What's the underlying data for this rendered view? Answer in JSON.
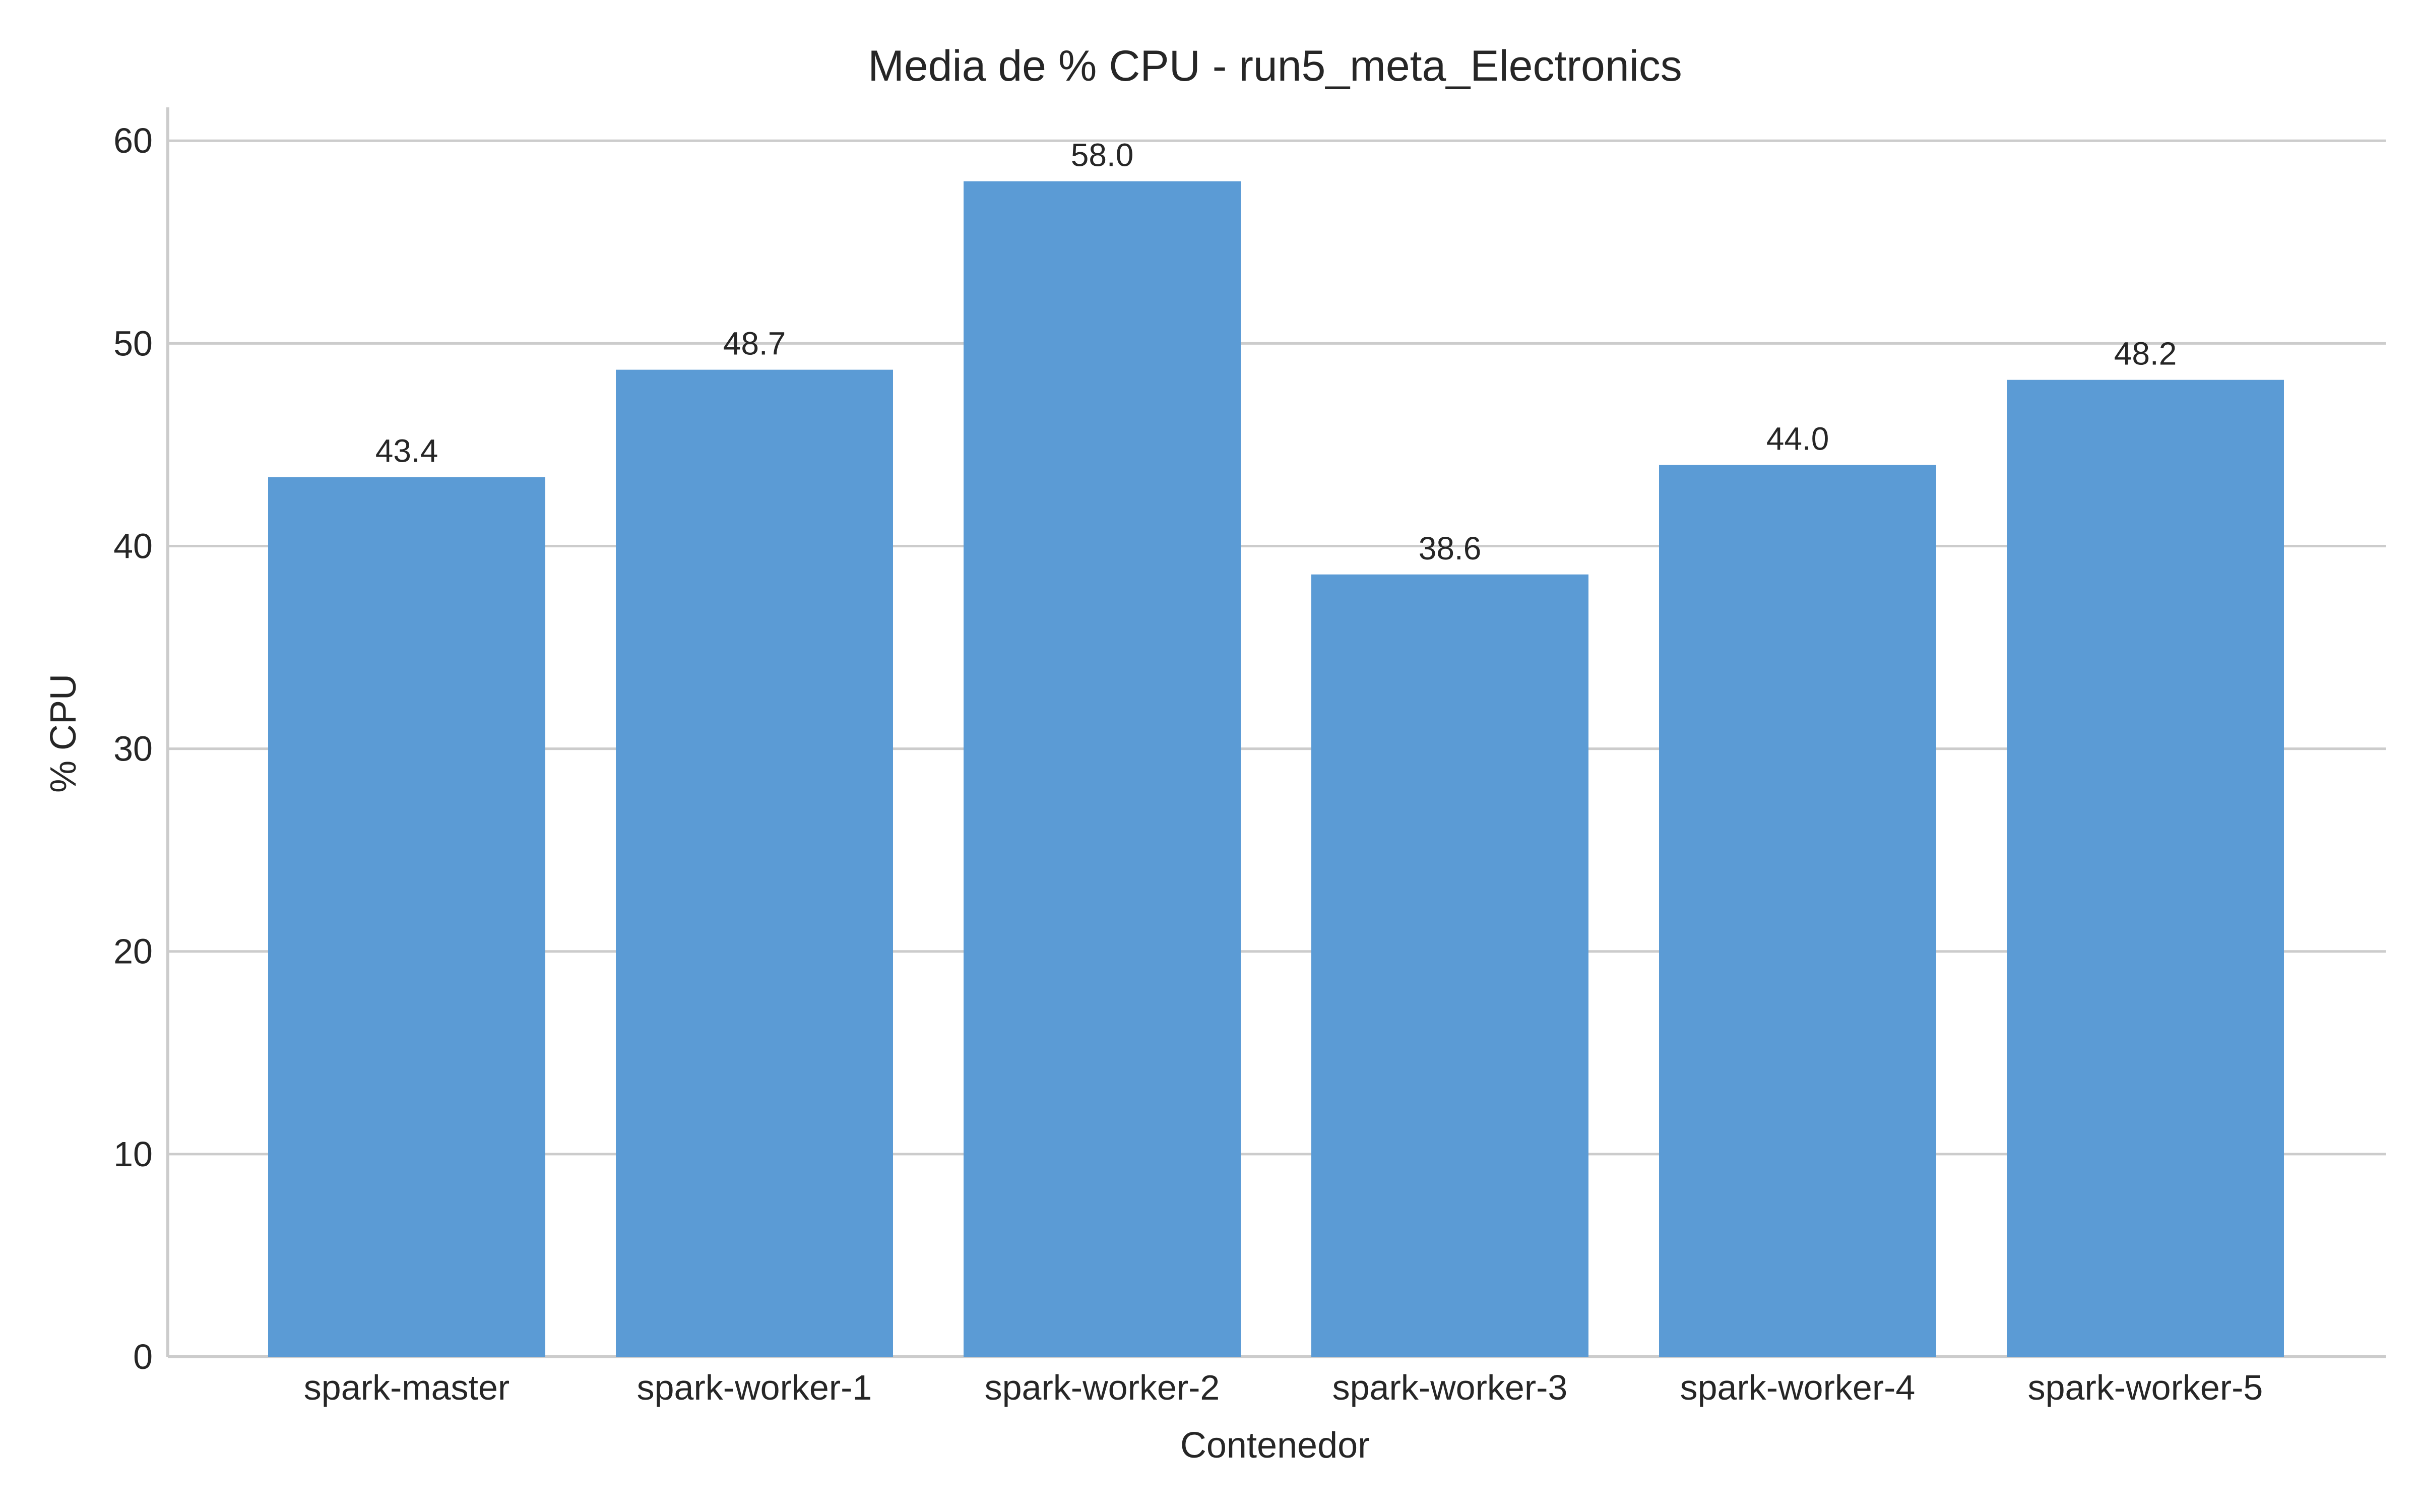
{
  "chart_data": {
    "type": "bar",
    "title": "Media de % CPU - run5_meta_Electronics",
    "xlabel": "Contenedor",
    "ylabel": "% CPU",
    "categories": [
      "spark-master",
      "spark-worker-1",
      "spark-worker-2",
      "spark-worker-3",
      "spark-worker-4",
      "spark-worker-5"
    ],
    "values": [
      43.4,
      48.7,
      58.0,
      38.6,
      44.0,
      48.2
    ],
    "data_labels": [
      "43.4",
      "48.7",
      "58.0",
      "38.6",
      "44.0",
      "48.2"
    ],
    "yticks": [
      0,
      10,
      20,
      30,
      40,
      50,
      60
    ],
    "ylim": [
      0,
      60.9
    ],
    "grid": "horizontal",
    "bar_color": "#5b9bd5",
    "legend": "none"
  }
}
